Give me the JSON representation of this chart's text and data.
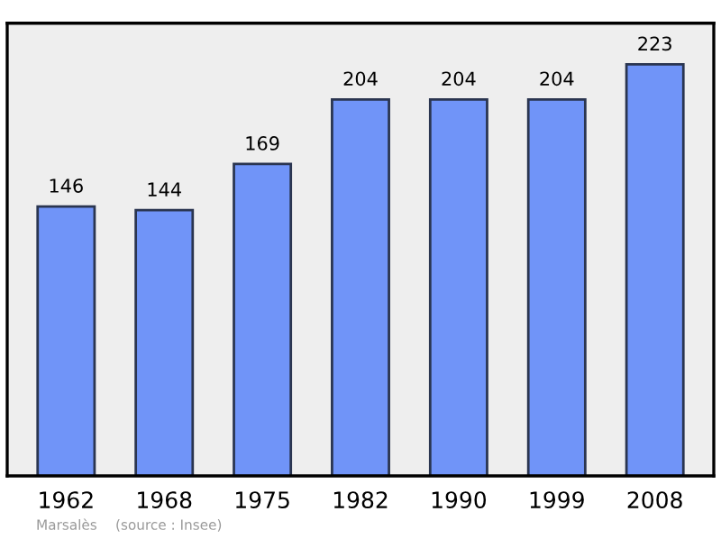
{
  "chart_data": {
    "type": "bar",
    "categories": [
      "1962",
      "1968",
      "1975",
      "1982",
      "1990",
      "1999",
      "2008"
    ],
    "values": [
      146,
      144,
      169,
      204,
      204,
      204,
      223
    ],
    "color": "#7094f8",
    "data_labels": true,
    "grid": false,
    "tick_labels": "x",
    "annotations": [
      "Marsalès",
      "(source : Insee)"
    ]
  }
}
